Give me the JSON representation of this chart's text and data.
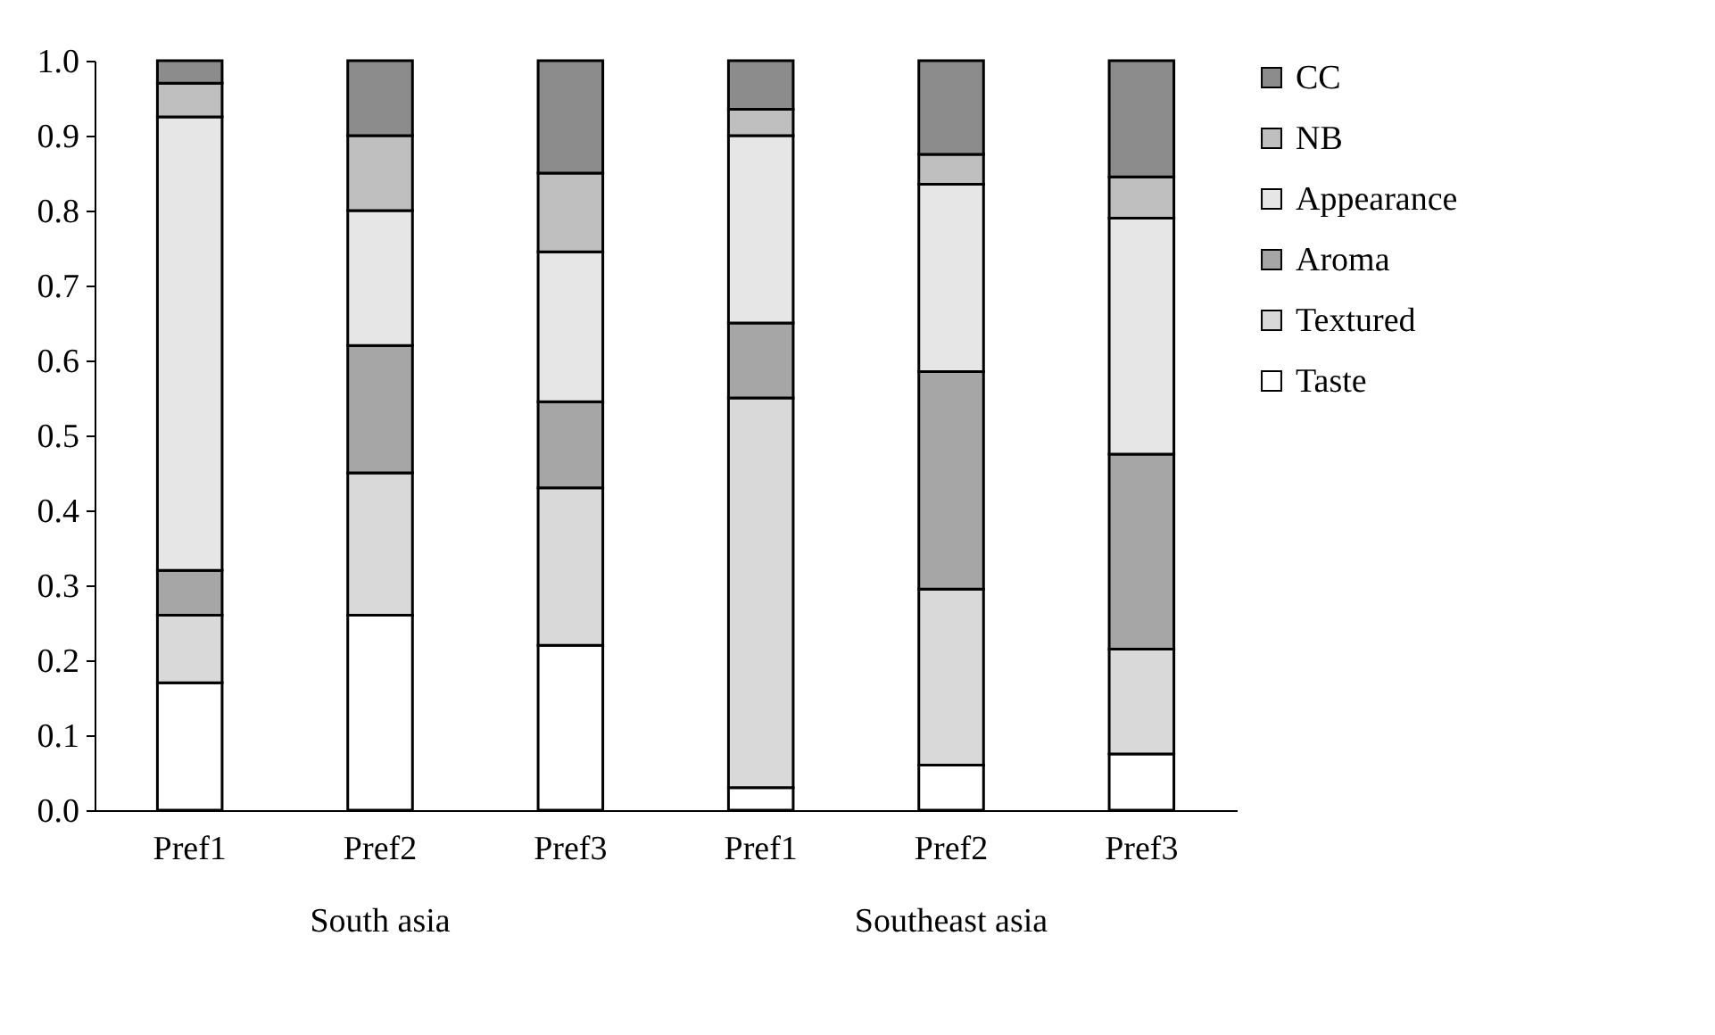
{
  "chart_data": {
    "type": "bar",
    "stacked": true,
    "categories": [
      "Pref1",
      "Pref2",
      "Pref3",
      "Pref1",
      "Pref2",
      "Pref3"
    ],
    "annotations": [
      "South asia",
      "Southeast asia"
    ],
    "series": [
      {
        "name": "Taste",
        "color": "#ffffff",
        "values": [
          0.17,
          0.26,
          0.22,
          0.03,
          0.06,
          0.075
        ]
      },
      {
        "name": "Textured",
        "color": "#d9d9d9",
        "values": [
          0.09,
          0.19,
          0.21,
          0.52,
          0.235,
          0.14
        ]
      },
      {
        "name": "Aroma",
        "color": "#a6a6a6",
        "values": [
          0.06,
          0.17,
          0.115,
          0.1,
          0.29,
          0.26
        ]
      },
      {
        "name": "Appearance",
        "color": "#e6e6e6",
        "values": [
          0.605,
          0.18,
          0.2,
          0.25,
          0.25,
          0.315
        ]
      },
      {
        "name": "NB",
        "color": "#bfbfbf",
        "values": [
          0.045,
          0.1,
          0.105,
          0.035,
          0.04,
          0.055
        ]
      },
      {
        "name": "CC",
        "color": "#8c8c8c",
        "values": [
          0.03,
          0.1,
          0.15,
          0.065,
          0.125,
          0.155
        ]
      }
    ],
    "ylim": [
      0,
      1
    ],
    "yticks": [
      {
        "value": 0,
        "label": "0.0"
      },
      {
        "value": 0.1,
        "label": "0.1"
      },
      {
        "value": 0.2,
        "label": "0.2"
      },
      {
        "value": 0.3,
        "label": "0.3"
      },
      {
        "value": 0.4,
        "label": "0.4"
      },
      {
        "value": 0.5,
        "label": "0.5"
      },
      {
        "value": 0.6,
        "label": "0.6"
      },
      {
        "value": 0.7,
        "label": "0.7"
      },
      {
        "value": 0.8,
        "label": "0.8"
      },
      {
        "value": 0.9,
        "label": "0.9"
      },
      {
        "value": 1,
        "label": "1.0"
      }
    ],
    "grid": false,
    "legend": "right"
  }
}
